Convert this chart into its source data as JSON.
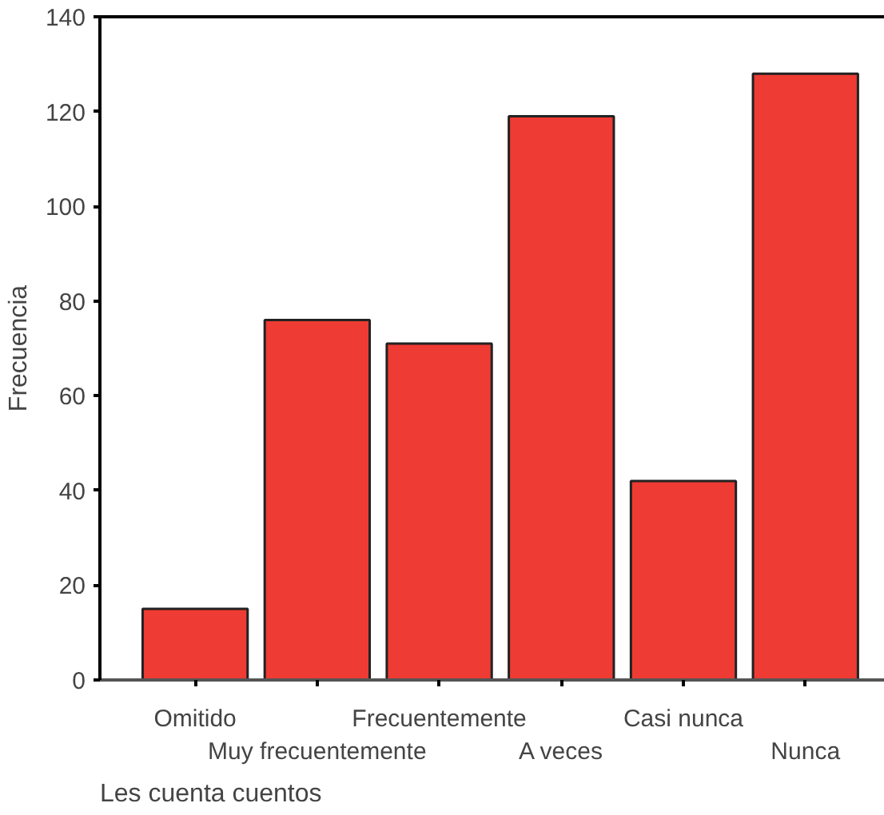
{
  "chart_data": {
    "type": "bar",
    "xlabel": "Les cuenta cuentos",
    "ylabel": "Frecuencia",
    "categories": [
      "Omitido",
      "Muy frecuentemente",
      "Frecuentemente",
      "A veces",
      "Casi nunca",
      "Nunca"
    ],
    "values": [
      15,
      76,
      71,
      119,
      42,
      128
    ],
    "color": "#ee3b33",
    "ylim": [
      0,
      140
    ],
    "yticks": [
      0,
      20,
      40,
      60,
      80,
      100,
      120,
      140
    ],
    "grid": false
  }
}
